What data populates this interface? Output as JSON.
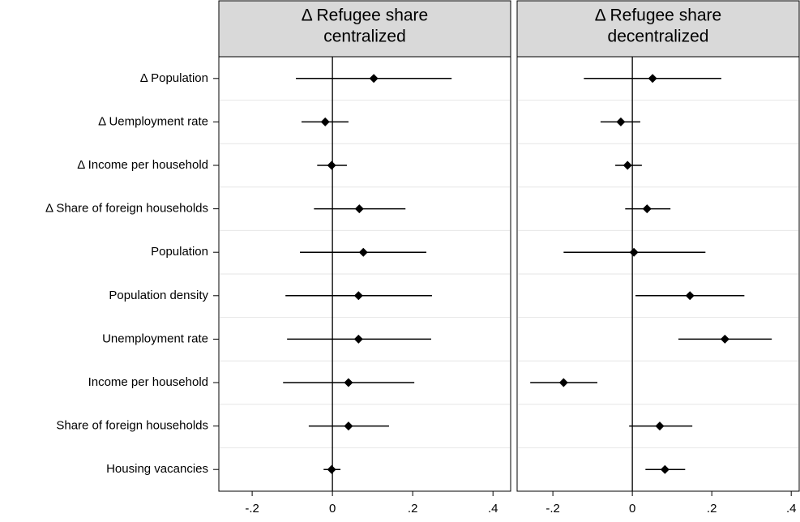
{
  "chart_data": [
    {
      "type": "coefplot",
      "title": [
        "Δ Refugee share",
        "centralized"
      ],
      "categories": [
        "Δ Population",
        "Δ Uemployment rate",
        "Δ Income per household",
        "Δ Share of foreign households",
        "Population",
        "Population density",
        "Unemployment rate",
        "Income per household",
        "Share of foreign households",
        "Housing vacancies"
      ],
      "values": [
        0.103,
        -0.018,
        -0.002,
        0.067,
        0.077,
        0.065,
        0.065,
        0.04,
        0.04,
        -0.002
      ],
      "lower": [
        -0.091,
        -0.077,
        -0.038,
        -0.046,
        -0.081,
        -0.117,
        -0.113,
        -0.123,
        -0.059,
        -0.022
      ],
      "upper": [
        0.297,
        0.04,
        0.036,
        0.182,
        0.234,
        0.248,
        0.246,
        0.204,
        0.141,
        0.02
      ],
      "color": "#000000",
      "xlim": [
        -0.283,
        0.444
      ],
      "xticks": [
        {
          "value": -0.2,
          "label": "-.2"
        },
        0,
        {
          "value": 0.2,
          "label": ".2"
        },
        {
          "value": 0.4,
          "label": ".4"
        }
      ]
    },
    {
      "type": "coefplot",
      "title": [
        "Δ Refugee share",
        "decentralized"
      ],
      "values": [
        0.051,
        -0.029,
        -0.012,
        0.037,
        0.004,
        0.145,
        0.233,
        -0.173,
        0.069,
        0.082
      ],
      "lower": [
        -0.122,
        -0.08,
        -0.043,
        -0.018,
        -0.173,
        0.008,
        0.116,
        -0.257,
        -0.008,
        0.033
      ],
      "upper": [
        0.224,
        0.02,
        0.024,
        0.096,
        0.184,
        0.282,
        0.351,
        -0.088,
        0.151,
        0.133
      ],
      "color": "#000000",
      "xlim": [
        -0.29,
        0.42
      ],
      "xticks": [
        {
          "value": -0.2,
          "label": "-.2"
        },
        0,
        {
          "value": 0.2,
          "label": ".2"
        },
        {
          "value": 0.4,
          "label": ".4"
        }
      ]
    }
  ]
}
